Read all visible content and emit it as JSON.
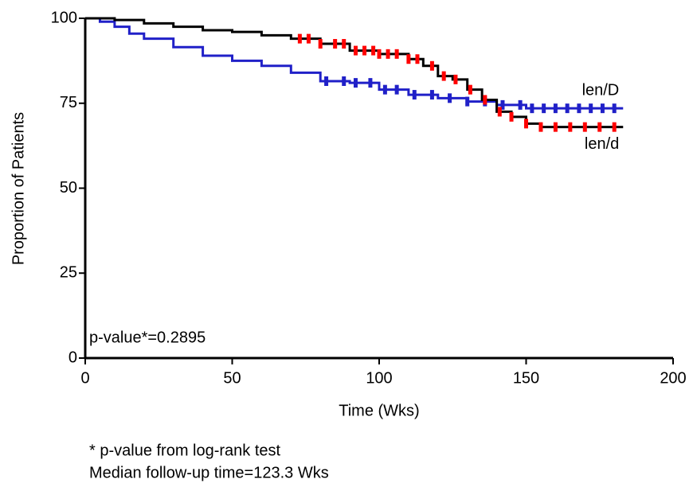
{
  "chart_data": {
    "type": "step",
    "xlabel": "Time (Wks)",
    "ylabel": "Proportion of Patients",
    "annotation": "p-value*=0.2895",
    "footnotes": [
      "* p-value from log-rank test",
      "Median follow-up time=123.3 Wks"
    ],
    "xlim": [
      0,
      200
    ],
    "ylim": [
      0,
      100
    ],
    "xticks": [
      0,
      50,
      100,
      150,
      200
    ],
    "yticks": [
      0,
      25,
      50,
      75,
      100
    ],
    "series": [
      {
        "name": "len/D",
        "color": "#2020c8",
        "censor_color": "#2020c8",
        "x": [
          0,
          5,
          10,
          15,
          20,
          30,
          40,
          50,
          60,
          70,
          80,
          90,
          100,
          110,
          120,
          130,
          140,
          150,
          183
        ],
        "values": [
          100,
          99,
          97.5,
          95.5,
          94,
          91.5,
          89,
          87.5,
          86,
          84,
          81.5,
          81,
          79,
          77.5,
          76.5,
          75.5,
          74.5,
          73.5,
          73.5
        ],
        "censor_x": [
          82,
          88,
          92,
          97,
          102,
          106,
          112,
          118,
          124,
          130,
          136,
          142,
          148,
          152,
          156,
          160,
          164,
          168,
          172,
          176,
          180
        ],
        "censor_y": [
          81.5,
          81.5,
          81,
          81,
          79,
          79,
          77.5,
          77.5,
          76.5,
          75.5,
          75.5,
          74.5,
          74.5,
          73.5,
          73.5,
          73.5,
          73.5,
          73.5,
          73.5,
          73.5,
          73.5
        ]
      },
      {
        "name": "len/d",
        "color": "#000000",
        "censor_color": "#ff0000",
        "x": [
          0,
          10,
          20,
          30,
          40,
          50,
          60,
          70,
          80,
          90,
          100,
          110,
          115,
          120,
          125,
          130,
          135,
          140,
          145,
          150,
          155,
          183
        ],
        "values": [
          100,
          99.5,
          98.5,
          97.5,
          96.5,
          96,
          95,
          94,
          92.5,
          90.5,
          89.5,
          88,
          86,
          83,
          82,
          79,
          76,
          72.5,
          71,
          69,
          68,
          68
        ],
        "censor_x": [
          73,
          76,
          80,
          85,
          88,
          92,
          95,
          98,
          100,
          103,
          106,
          110,
          113,
          118,
          122,
          126,
          131,
          136,
          141,
          145,
          150,
          155,
          160,
          165,
          170,
          175,
          180
        ],
        "censor_y": [
          94,
          94,
          92.5,
          92.5,
          92.5,
          90.5,
          90.5,
          90.5,
          89.5,
          89.5,
          89.5,
          88,
          88,
          86,
          83,
          82,
          79,
          76,
          72.5,
          71,
          69,
          68,
          68,
          68,
          68,
          68,
          68
        ]
      }
    ]
  }
}
